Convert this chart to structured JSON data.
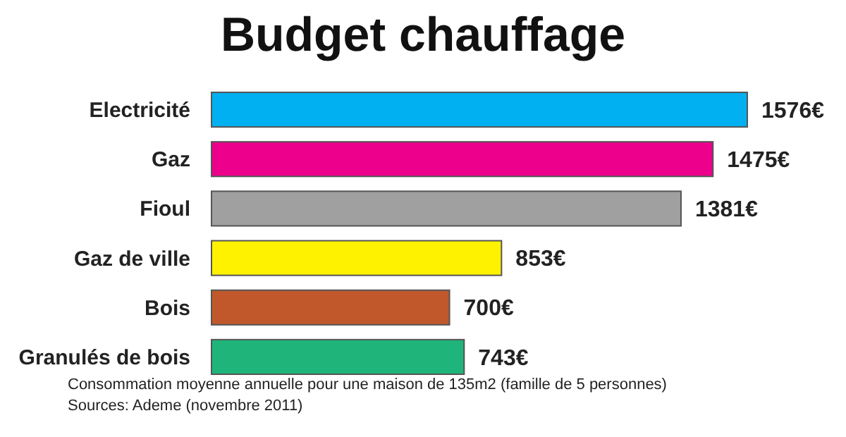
{
  "chart_data": {
    "type": "bar",
    "orientation": "horizontal",
    "title": "Budget chauffage",
    "categories": [
      "Electricité",
      "Gaz",
      "Fioul",
      "Gaz de ville",
      "Bois",
      "Granulés de bois"
    ],
    "values": [
      1576,
      1475,
      1381,
      853,
      700,
      743
    ],
    "colors": [
      "#00b0f0",
      "#ec008c",
      "#a0a0a0",
      "#fff200",
      "#c0582b",
      "#1fb57a"
    ],
    "data_labels": true,
    "value_labels": [
      "1576€",
      "1475€",
      "1381€",
      "853€",
      "700€",
      "743€"
    ],
    "annotations": [
      "Consommation moyenne annuelle pour une maison de 135m2 (famille de 5 personnes)",
      "Sources: Ademe (novembre 2011)"
    ]
  }
}
